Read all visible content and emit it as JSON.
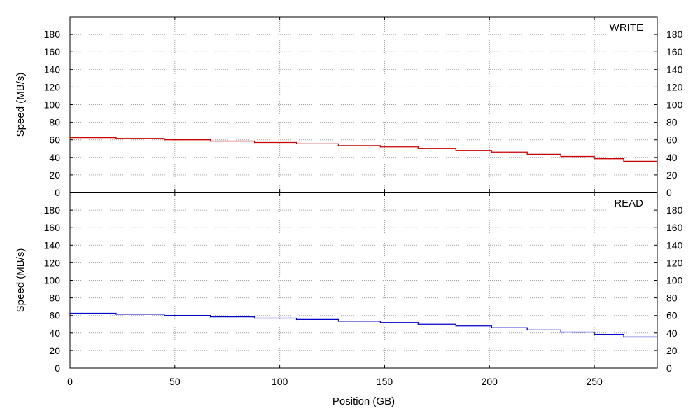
{
  "chart_data": [
    {
      "type": "line",
      "panel": "top",
      "legend": "WRITE",
      "legend_position": "top-right",
      "color": "#cc0000",
      "ylabel": "Speed (MB/s)",
      "xlabel": "",
      "xlim": [
        0,
        280
      ],
      "ylim": [
        0,
        200
      ],
      "yticks": [
        0,
        20,
        40,
        60,
        80,
        100,
        120,
        140,
        160,
        180
      ],
      "xticks": [
        0,
        50,
        100,
        150,
        200,
        250
      ],
      "grid": true,
      "series": [
        {
          "name": "WRITE",
          "x": [
            0,
            22,
            45,
            67,
            88,
            108,
            128,
            148,
            166,
            184,
            201,
            218,
            234,
            250,
            264,
            280
          ],
          "y": [
            62.5,
            61.5,
            60,
            58.5,
            57,
            55.5,
            53.5,
            52,
            50,
            48,
            46,
            43.5,
            41,
            38.5,
            35.5,
            33
          ]
        }
      ]
    },
    {
      "type": "line",
      "panel": "bottom",
      "legend": "READ",
      "legend_position": "top-right",
      "color": "#0000cc",
      "ylabel": "Speed (MB/s)",
      "xlabel": "Position (GB)",
      "xlim": [
        0,
        280
      ],
      "ylim": [
        0,
        200
      ],
      "yticks": [
        0,
        20,
        40,
        60,
        80,
        100,
        120,
        140,
        160,
        180
      ],
      "xticks": [
        0,
        50,
        100,
        150,
        200,
        250
      ],
      "grid": true,
      "series": [
        {
          "name": "READ",
          "x": [
            0,
            22,
            45,
            67,
            88,
            108,
            128,
            148,
            166,
            184,
            201,
            218,
            234,
            250,
            264,
            280
          ],
          "y": [
            62.5,
            61.5,
            60,
            58.5,
            57,
            55.5,
            53.5,
            52,
            50,
            48,
            46,
            43.5,
            41,
            38.5,
            35.5,
            33
          ]
        }
      ]
    }
  ]
}
